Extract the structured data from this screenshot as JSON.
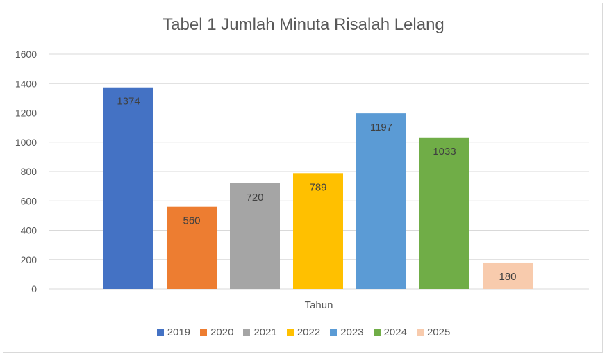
{
  "chart_data": {
    "type": "bar",
    "title": "Tabel 1 Jumlah Minuta Risalah Lelang",
    "xlabel": "Tahun",
    "ylabel": "",
    "ylim": [
      0,
      1600
    ],
    "yticks": [
      0,
      200,
      400,
      600,
      800,
      1000,
      1200,
      1400,
      1600
    ],
    "grid": true,
    "legend_position": "bottom",
    "series": [
      {
        "name": "2019",
        "value": 1374,
        "color": "#4472C4"
      },
      {
        "name": "2020",
        "value": 560,
        "color": "#ED7D31"
      },
      {
        "name": "2021",
        "value": 720,
        "color": "#A5A5A5"
      },
      {
        "name": "2022",
        "value": 789,
        "color": "#FFC000"
      },
      {
        "name": "2023",
        "value": 1197,
        "color": "#5B9BD5"
      },
      {
        "name": "2024",
        "value": 1033,
        "color": "#70AD47"
      },
      {
        "name": "2025",
        "value": 180,
        "color": "#F8CBAD"
      }
    ]
  }
}
